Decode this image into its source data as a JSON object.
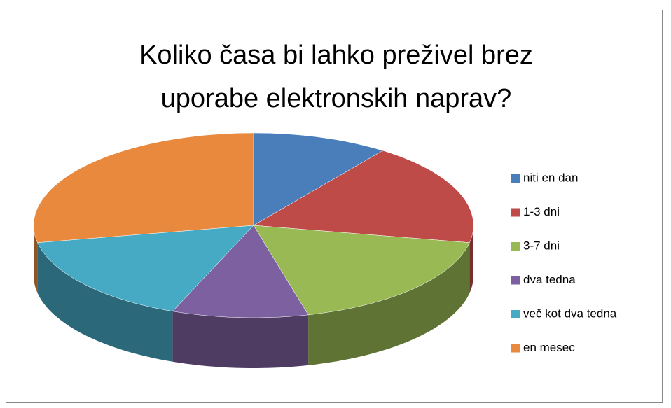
{
  "chart_data": {
    "type": "pie3d",
    "title": "Koliko časa bi lahko preživel brez uporabe elektronskih naprav?",
    "categories": [
      "niti en dan",
      "1-3 dni",
      "3-7 dni",
      "dva tedna",
      "več kot dva tedna",
      "en mesec"
    ],
    "values": [
      10,
      18,
      18,
      10,
      16,
      28
    ],
    "colors": [
      "#4a7ebb",
      "#be4b48",
      "#98b954",
      "#7d60a0",
      "#46aac5",
      "#e8893e"
    ],
    "legend": "right"
  }
}
